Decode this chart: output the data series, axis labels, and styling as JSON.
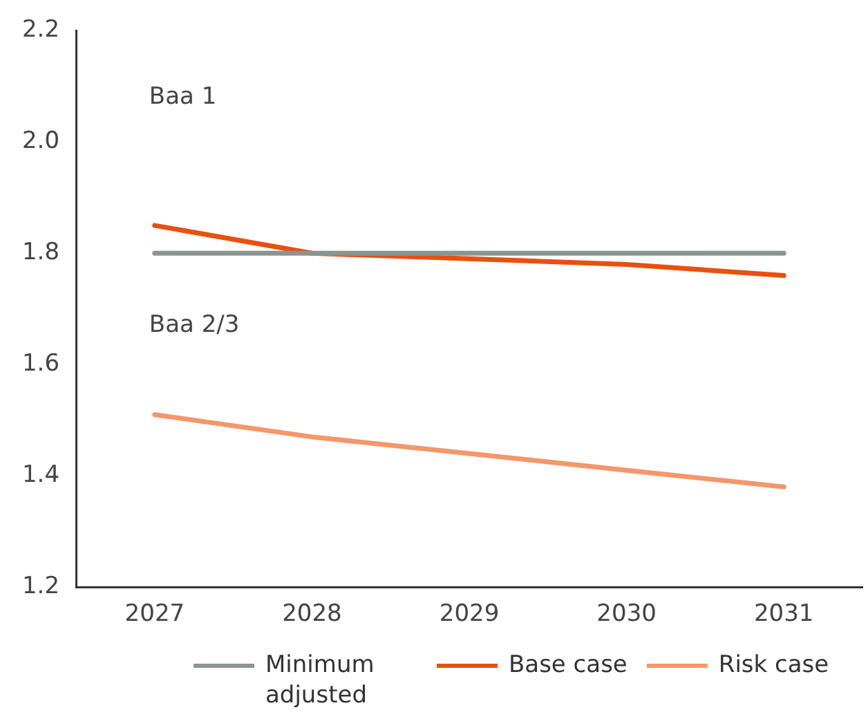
{
  "chart_data": {
    "type": "line",
    "categories": [
      "2027",
      "2028",
      "2029",
      "2030",
      "2031"
    ],
    "series": [
      {
        "name": "Minimum adjusted",
        "color": "#8a9490",
        "values": [
          1.8,
          1.8,
          1.8,
          1.8,
          1.8
        ]
      },
      {
        "name": "Base case",
        "color": "#e8500f",
        "values": [
          1.85,
          1.8,
          1.79,
          1.78,
          1.76
        ]
      },
      {
        "name": "Risk case",
        "color": "#f4976a",
        "values": [
          1.51,
          1.47,
          1.44,
          1.41,
          1.38
        ]
      }
    ],
    "ylim": [
      1.2,
      2.2
    ],
    "yticks": [
      1.2,
      1.4,
      1.6,
      1.8,
      {
        "value": 2,
        "label": "2.0"
      },
      2.2
    ],
    "annotations": [
      "Baa 1",
      "Baa 2/3"
    ],
    "grid": false,
    "legend": "bottom",
    "marker": "none",
    "line_style": "solid"
  }
}
